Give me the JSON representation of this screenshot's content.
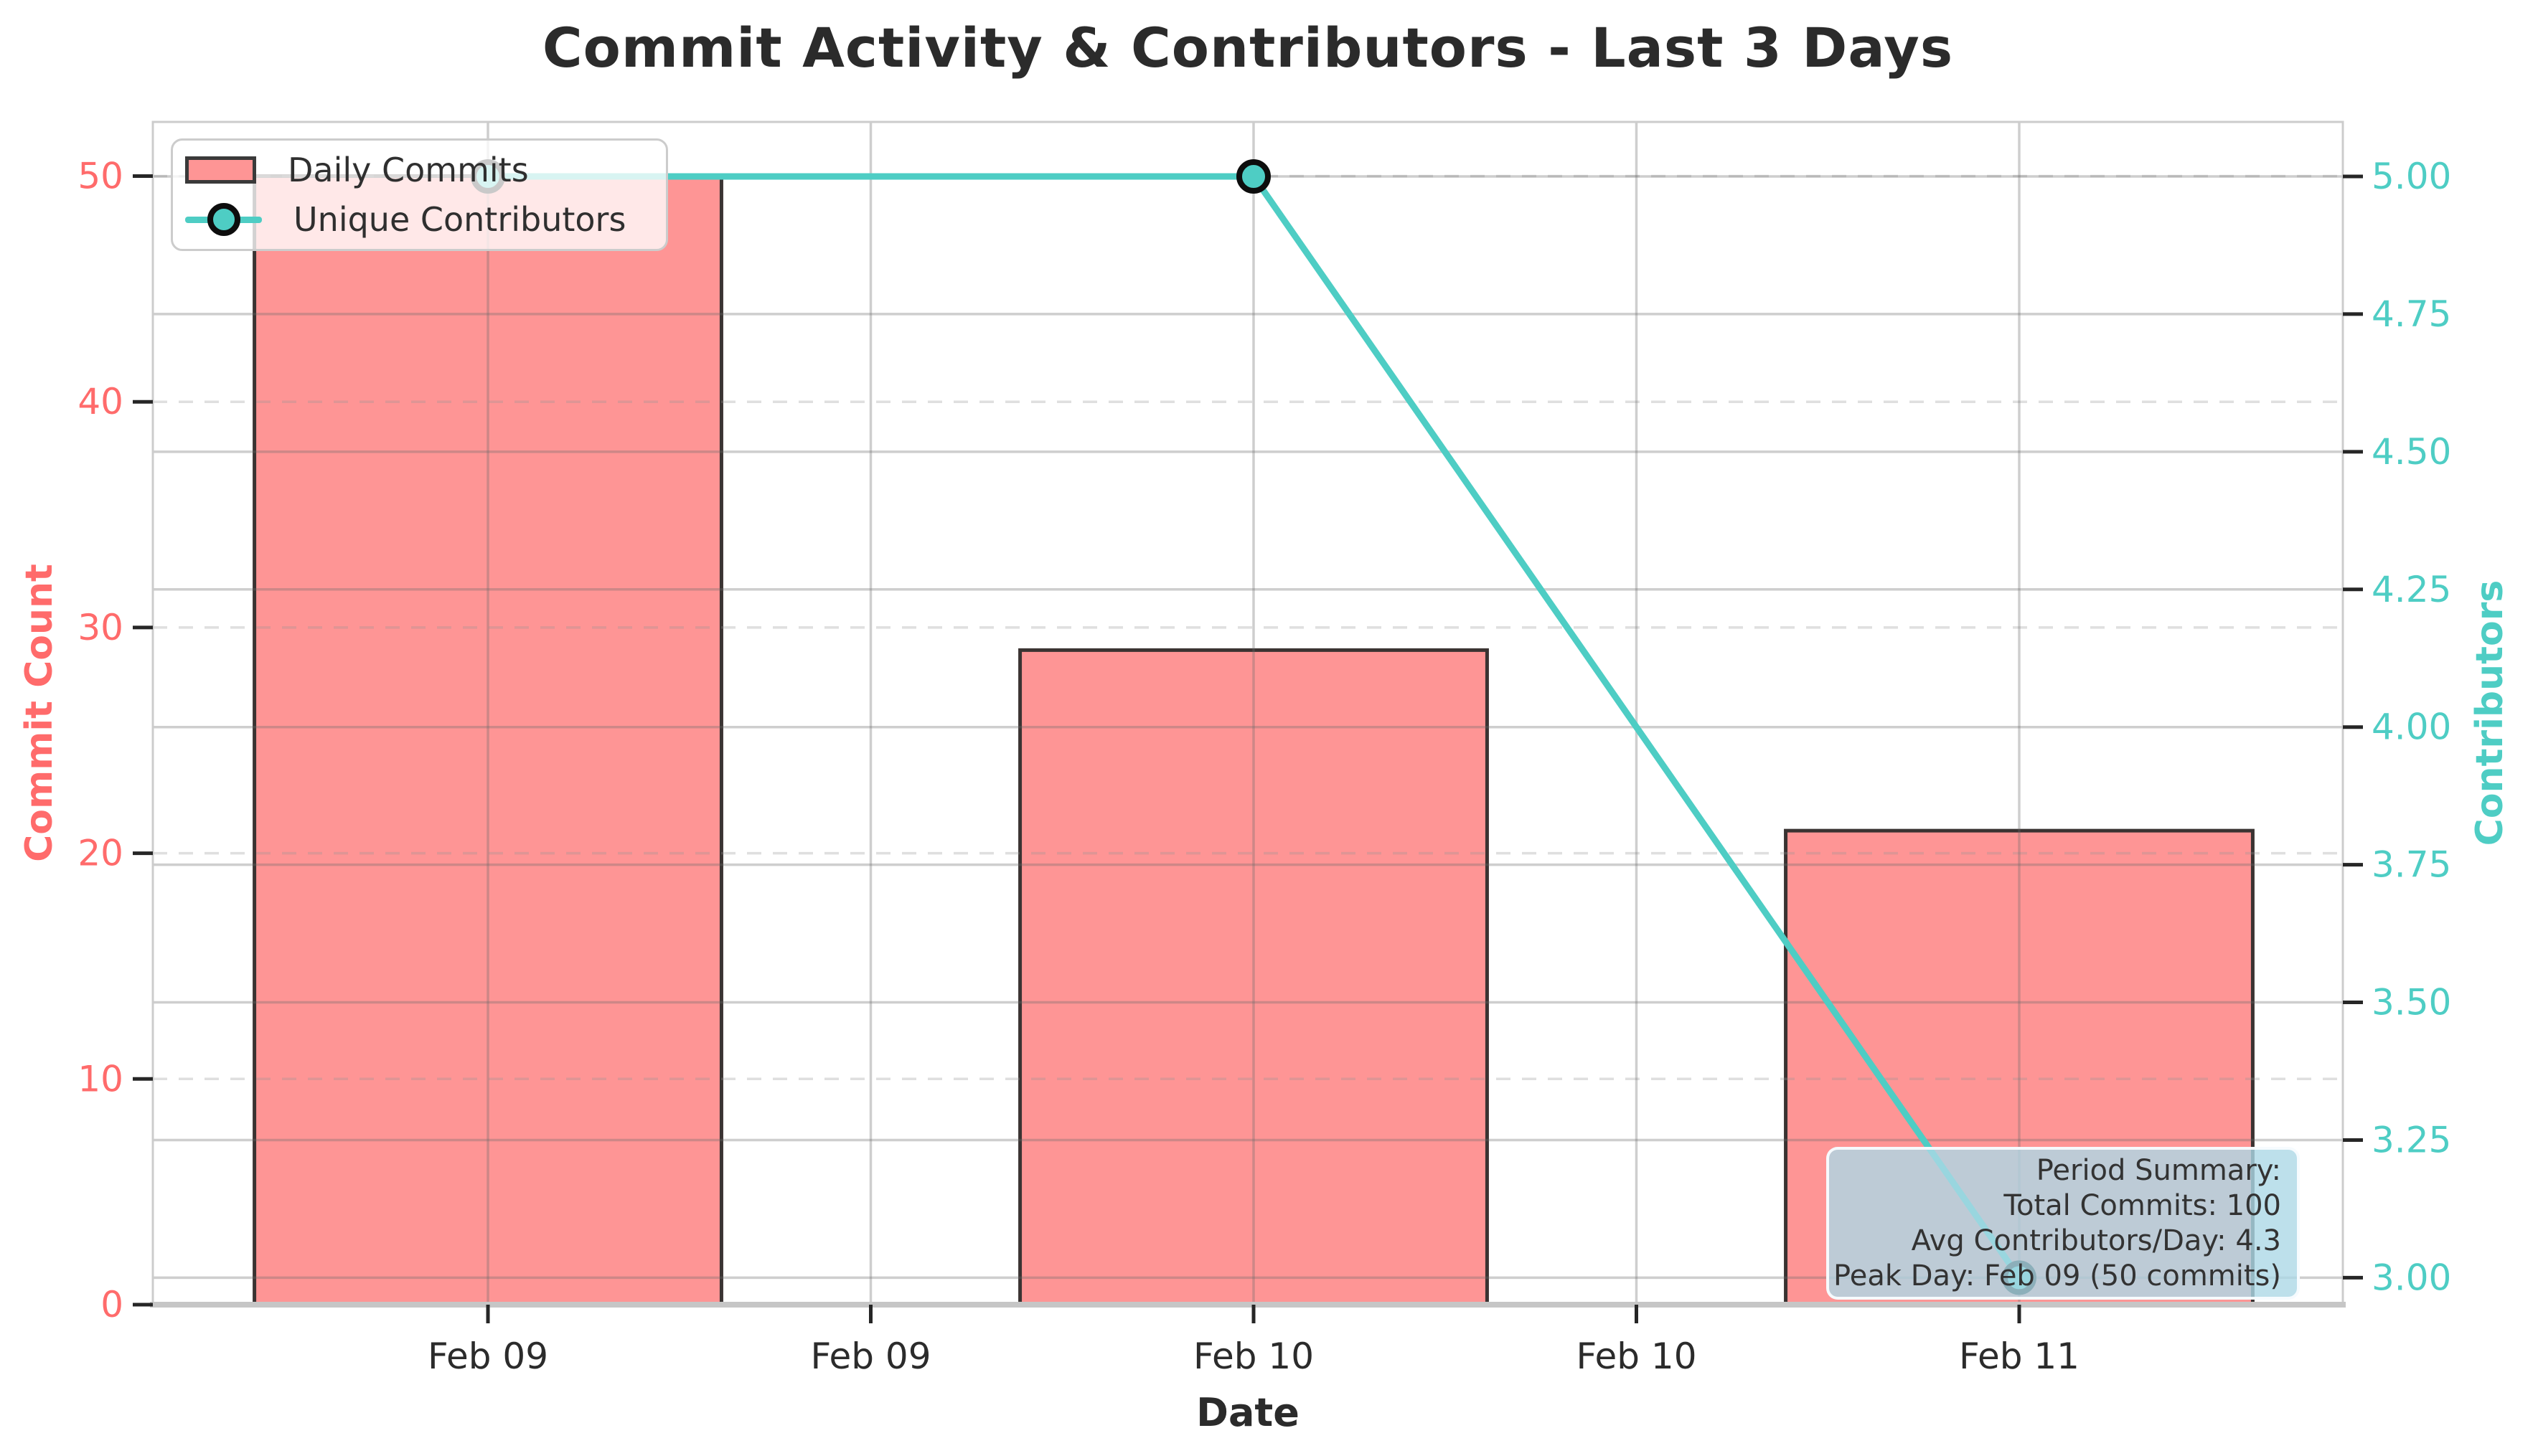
{
  "chart_data": {
    "type": "combo",
    "title": "Commit Activity & Contributors - Last 3 Days",
    "xlabel": "Date",
    "categories": [
      "Feb 09",
      "Feb 10",
      "Feb 11"
    ],
    "x_tick_labels": [
      "Feb 09",
      "Feb 09",
      "Feb 10",
      "Feb 10",
      "Feb 11"
    ],
    "x_tick_positions_days": [
      0,
      0.5,
      1,
      1.5,
      2
    ],
    "x_positions_days": [
      0,
      1,
      2
    ],
    "xlim_days": [
      -0.4377,
      2.4227
    ],
    "series": [
      {
        "name": "Daily Commits",
        "type": "bar",
        "axis": "left",
        "values": [
          50,
          29,
          21
        ],
        "fill": "#FE9595",
        "edge": "#3a3332",
        "bar_width_days": 0.61
      },
      {
        "name": "Unique Contributors",
        "type": "line",
        "axis": "right",
        "values": [
          5,
          5,
          3
        ],
        "color": "#4ECDC4",
        "marker": "circle"
      }
    ],
    "left_axis": {
      "label": "Commit Count",
      "ticks": [
        0,
        10,
        20,
        30,
        40,
        50
      ],
      "range": [
        0,
        52.4
      ],
      "color": "#FF6B6B",
      "grid_style": "dashed"
    },
    "right_axis": {
      "label": "Contributors",
      "ticks": [
        "3.00",
        "3.25",
        "3.50",
        "3.75",
        "4.00",
        "4.25",
        "4.50",
        "4.75",
        "5.00"
      ],
      "range": [
        2.951,
        5.099
      ],
      "color": "#4ECDC4",
      "grid_style": "solid"
    },
    "grid_vertical": true,
    "legend_position": "upper left",
    "annotation": {
      "lines": [
        "Period Summary:",
        "Total Commits: 100",
        "Avg Contributors/Day: 4.3",
        "Peak Day: Feb 09 (50 commits)"
      ]
    },
    "style_colors": {
      "title_text": "#2b2b2b",
      "x_tick_text": "#2b2b2b",
      "tick_mark": "#262626",
      "spine": "#cccccc",
      "bottom_spine": "#c6c6c6",
      "grid_solid": "rgba(105,105,105,0.33)",
      "grid_dashed": "rgba(150,150,150,0.30)",
      "summary_bg": "#ADD8E6"
    }
  }
}
